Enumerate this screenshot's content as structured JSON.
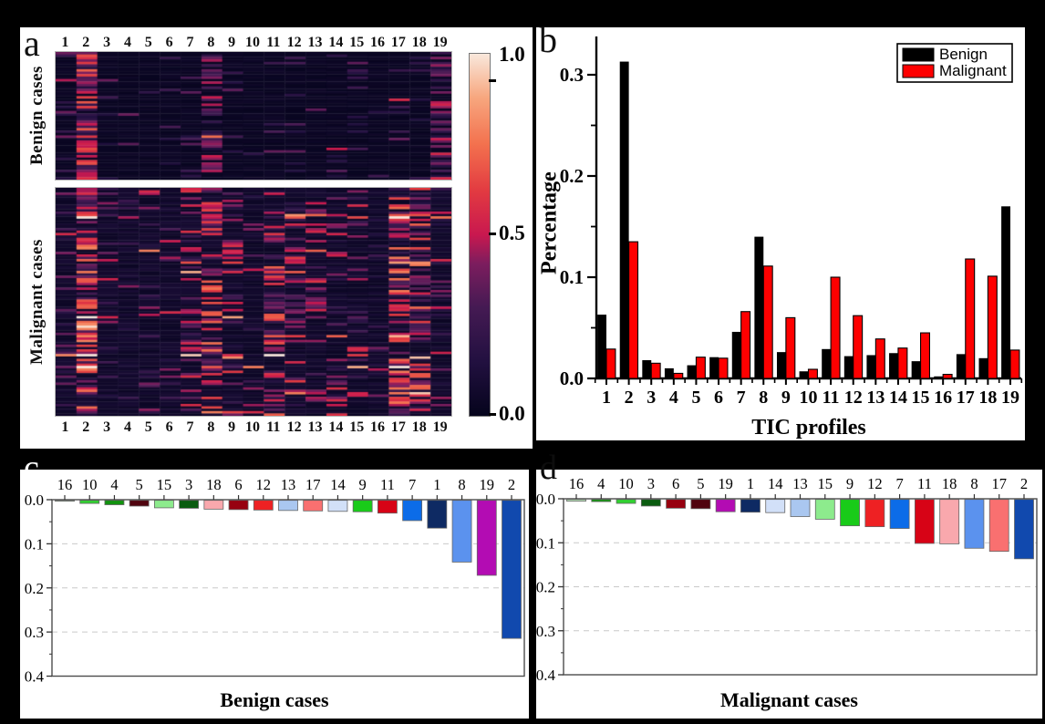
{
  "figure": {
    "background": "#000000",
    "description": "Four-panel TIC profile figure"
  },
  "panels": {
    "a": {
      "letter": "a"
    },
    "b": {
      "letter": "b",
      "ylabel": "Percentage",
      "xlabel": "TIC profiles"
    },
    "c": {
      "letter": "c",
      "title": "Benign cases"
    },
    "d": {
      "letter": "d",
      "title": "Malignant cases"
    }
  },
  "profiles": [
    "1",
    "2",
    "3",
    "4",
    "5",
    "6",
    "7",
    "8",
    "9",
    "10",
    "11",
    "12",
    "13",
    "14",
    "15",
    "16",
    "17",
    "18",
    "19"
  ],
  "frequencies": {
    "benign": [
      0.063,
      0.313,
      0.018,
      0.01,
      0.013,
      0.021,
      0.046,
      0.14,
      0.026,
      0.007,
      0.029,
      0.022,
      0.023,
      0.025,
      0.017,
      0.002,
      0.024,
      0.02,
      0.17
    ],
    "malignant": [
      0.029,
      0.135,
      0.015,
      0.005,
      0.021,
      0.02,
      0.066,
      0.111,
      0.06,
      0.009,
      0.1,
      0.062,
      0.039,
      0.03,
      0.045,
      0.004,
      0.118,
      0.101,
      0.028
    ]
  },
  "profile_colors": {
    "1": "#0e2a63",
    "2": "#1149ae",
    "3": "#0a5c10",
    "4": "#12930f",
    "5": "#50040f",
    "6": "#970110",
    "7": "#0c6ce8",
    "8": "#5b92ee",
    "9": "#19cb19",
    "10": "#31d231",
    "11": "#d70316",
    "12": "#ee2123",
    "13": "#aac7f0",
    "14": "#d2e0f8",
    "15": "#8deb8d",
    "16": "#bce7bc",
    "17": "#f97070",
    "18": "#f9a8ad",
    "19": "#b30cb3"
  },
  "colormap_rocket": [
    [
      0.0,
      "#05041c"
    ],
    [
      0.15,
      "#221040"
    ],
    [
      0.3,
      "#451a53"
    ],
    [
      0.42,
      "#7c1d5e"
    ],
    [
      0.5,
      "#c9184f"
    ],
    [
      0.62,
      "#e23a41"
    ],
    [
      0.75,
      "#f3714e"
    ],
    [
      0.88,
      "#f7a77f"
    ],
    [
      1.0,
      "#f9e8dc"
    ]
  ],
  "chart_data": [
    {
      "id": "a",
      "type": "heatmap",
      "col_labels": [
        "1",
        "2",
        "3",
        "4",
        "5",
        "6",
        "7",
        "8",
        "9",
        "10",
        "11",
        "12",
        "13",
        "14",
        "15",
        "16",
        "17",
        "18",
        "19"
      ],
      "row_groups": [
        {
          "key": "benign",
          "label": "Benign cases",
          "rows": 52,
          "bg": 0.035,
          "prob_base": 0.03,
          "prob_scale": 2.8,
          "val_base": 0.25,
          "val_scale": 1.1
        },
        {
          "key": "malignant",
          "label": "Malignant cases",
          "rows": 96,
          "bg": 0.07,
          "prob_base": 0.06,
          "prob_scale": 5.0,
          "val_base": 0.4,
          "val_scale": 2.2
        }
      ],
      "column_weights_ref": "frequencies",
      "seed": 1337,
      "colorbar": {
        "ticks": [
          "1.0",
          "0.5",
          "0.0"
        ],
        "min": 0.0,
        "max": 1.0
      }
    },
    {
      "id": "b",
      "type": "bar",
      "categories": [
        "1",
        "2",
        "3",
        "4",
        "5",
        "6",
        "7",
        "8",
        "9",
        "10",
        "11",
        "12",
        "13",
        "14",
        "15",
        "16",
        "17",
        "18",
        "19"
      ],
      "series": [
        {
          "name": "Benign",
          "color": "#000000",
          "values_ref": "benign"
        },
        {
          "name": "Malignant",
          "color": "#fe0000",
          "values_ref": "malignant"
        }
      ],
      "xlabel": "TIC profiles",
      "ylabel": "Percentage",
      "ylim": [
        0.0,
        0.345
      ],
      "yticks": [
        0.0,
        0.1,
        0.2,
        0.3
      ],
      "minor_ytick_step": 0.05,
      "legend_position": "top-right",
      "grid": false
    },
    {
      "id": "c",
      "type": "bar",
      "orientation": "downward",
      "title": "Benign cases",
      "order": [
        16,
        10,
        4,
        5,
        15,
        3,
        18,
        6,
        12,
        13,
        17,
        14,
        9,
        11,
        7,
        1,
        8,
        19,
        2
      ],
      "values_ref": "benign",
      "ylim": [
        0.0,
        0.4
      ],
      "yticks": [
        0.0,
        0.1,
        0.2,
        0.3,
        0.4
      ],
      "minor_ytick_step": 0.05,
      "grid": "dashed-horizontal"
    },
    {
      "id": "d",
      "type": "bar",
      "orientation": "downward",
      "title": "Malignant cases",
      "order": [
        16,
        4,
        10,
        3,
        6,
        5,
        19,
        1,
        14,
        13,
        15,
        9,
        12,
        7,
        11,
        18,
        8,
        17,
        2
      ],
      "values_ref": "malignant",
      "ylim": [
        0.0,
        0.4
      ],
      "yticks": [
        0.0,
        0.1,
        0.2,
        0.3,
        0.4
      ],
      "minor_ytick_step": 0.05,
      "grid": "dashed-horizontal"
    }
  ]
}
